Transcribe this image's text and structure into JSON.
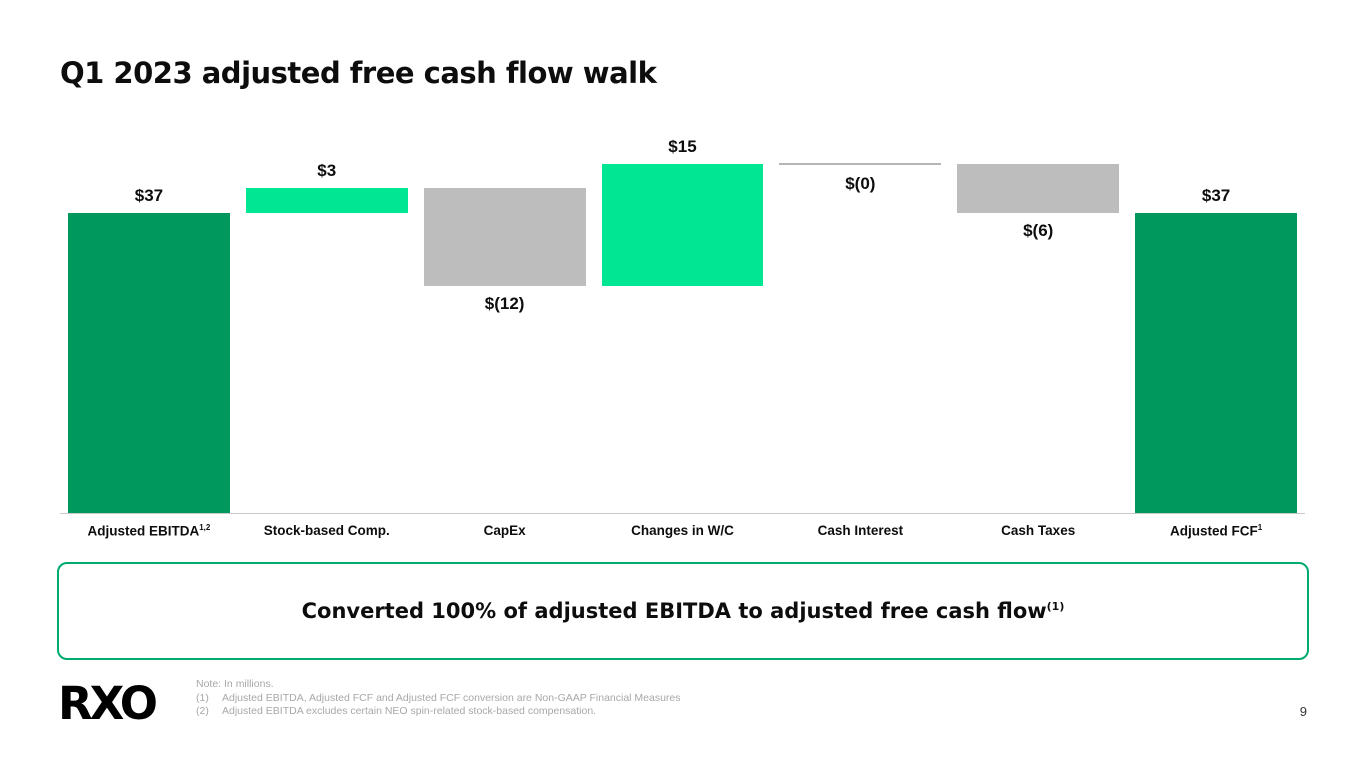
{
  "slide": {
    "title": "Q1 2023 adjusted free cash flow walk",
    "page_number": "9",
    "logo": "RXO",
    "callout": {
      "text": "Converted 100% of adjusted EBITDA to adjusted free cash flow",
      "superscript": "(1)"
    },
    "footnotes": {
      "note": "Note: In millions.",
      "fn1_num": "(1)",
      "fn1_text": "Adjusted EBITDA, Adjusted FCF and Adjusted FCF conversion are Non-GAAP Financial Measures",
      "fn2_num": "(2)",
      "fn2_text": "Adjusted EBITDA excludes certain NEO spin-related stock-based compensation."
    }
  },
  "chart_data": {
    "type": "bar",
    "subtype": "waterfall",
    "title": "Q1 2023 adjusted free cash flow walk",
    "units": "USD millions",
    "categories": [
      {
        "label": "Adjusted EBITDA",
        "sup": "1,2"
      },
      {
        "label": "Stock-based Comp.",
        "sup": ""
      },
      {
        "label": "CapEx",
        "sup": ""
      },
      {
        "label": "Changes in W/C",
        "sup": ""
      },
      {
        "label": "Cash Interest",
        "sup": ""
      },
      {
        "label": "Cash Taxes",
        "sup": ""
      },
      {
        "label": "Adjusted FCF",
        "sup": "1"
      }
    ],
    "bars": [
      {
        "value": 37,
        "label": "$37",
        "kind": "total",
        "label_pos": "above"
      },
      {
        "value": 3,
        "label": "$3",
        "kind": "positive",
        "label_pos": "above"
      },
      {
        "value": -12,
        "label": "$(12)",
        "kind": "negative",
        "label_pos": "below"
      },
      {
        "value": 15,
        "label": "$15",
        "kind": "positive",
        "label_pos": "above"
      },
      {
        "value": 0,
        "label": "$(0)",
        "kind": "zero",
        "label_pos": "below"
      },
      {
        "value": -6,
        "label": "$(6)",
        "kind": "negative",
        "label_pos": "below"
      },
      {
        "value": 37,
        "label": "$37",
        "kind": "total",
        "label_pos": "above"
      }
    ],
    "cumulative": [
      37,
      40,
      28,
      43,
      43,
      37,
      37
    ],
    "colors": {
      "total": "#00985C",
      "positive": "#00E693",
      "negative": "#BDBDBD",
      "zero": "#B5B5B5"
    },
    "ylim": [
      0,
      43.5
    ],
    "grid": false,
    "legend": "none"
  }
}
